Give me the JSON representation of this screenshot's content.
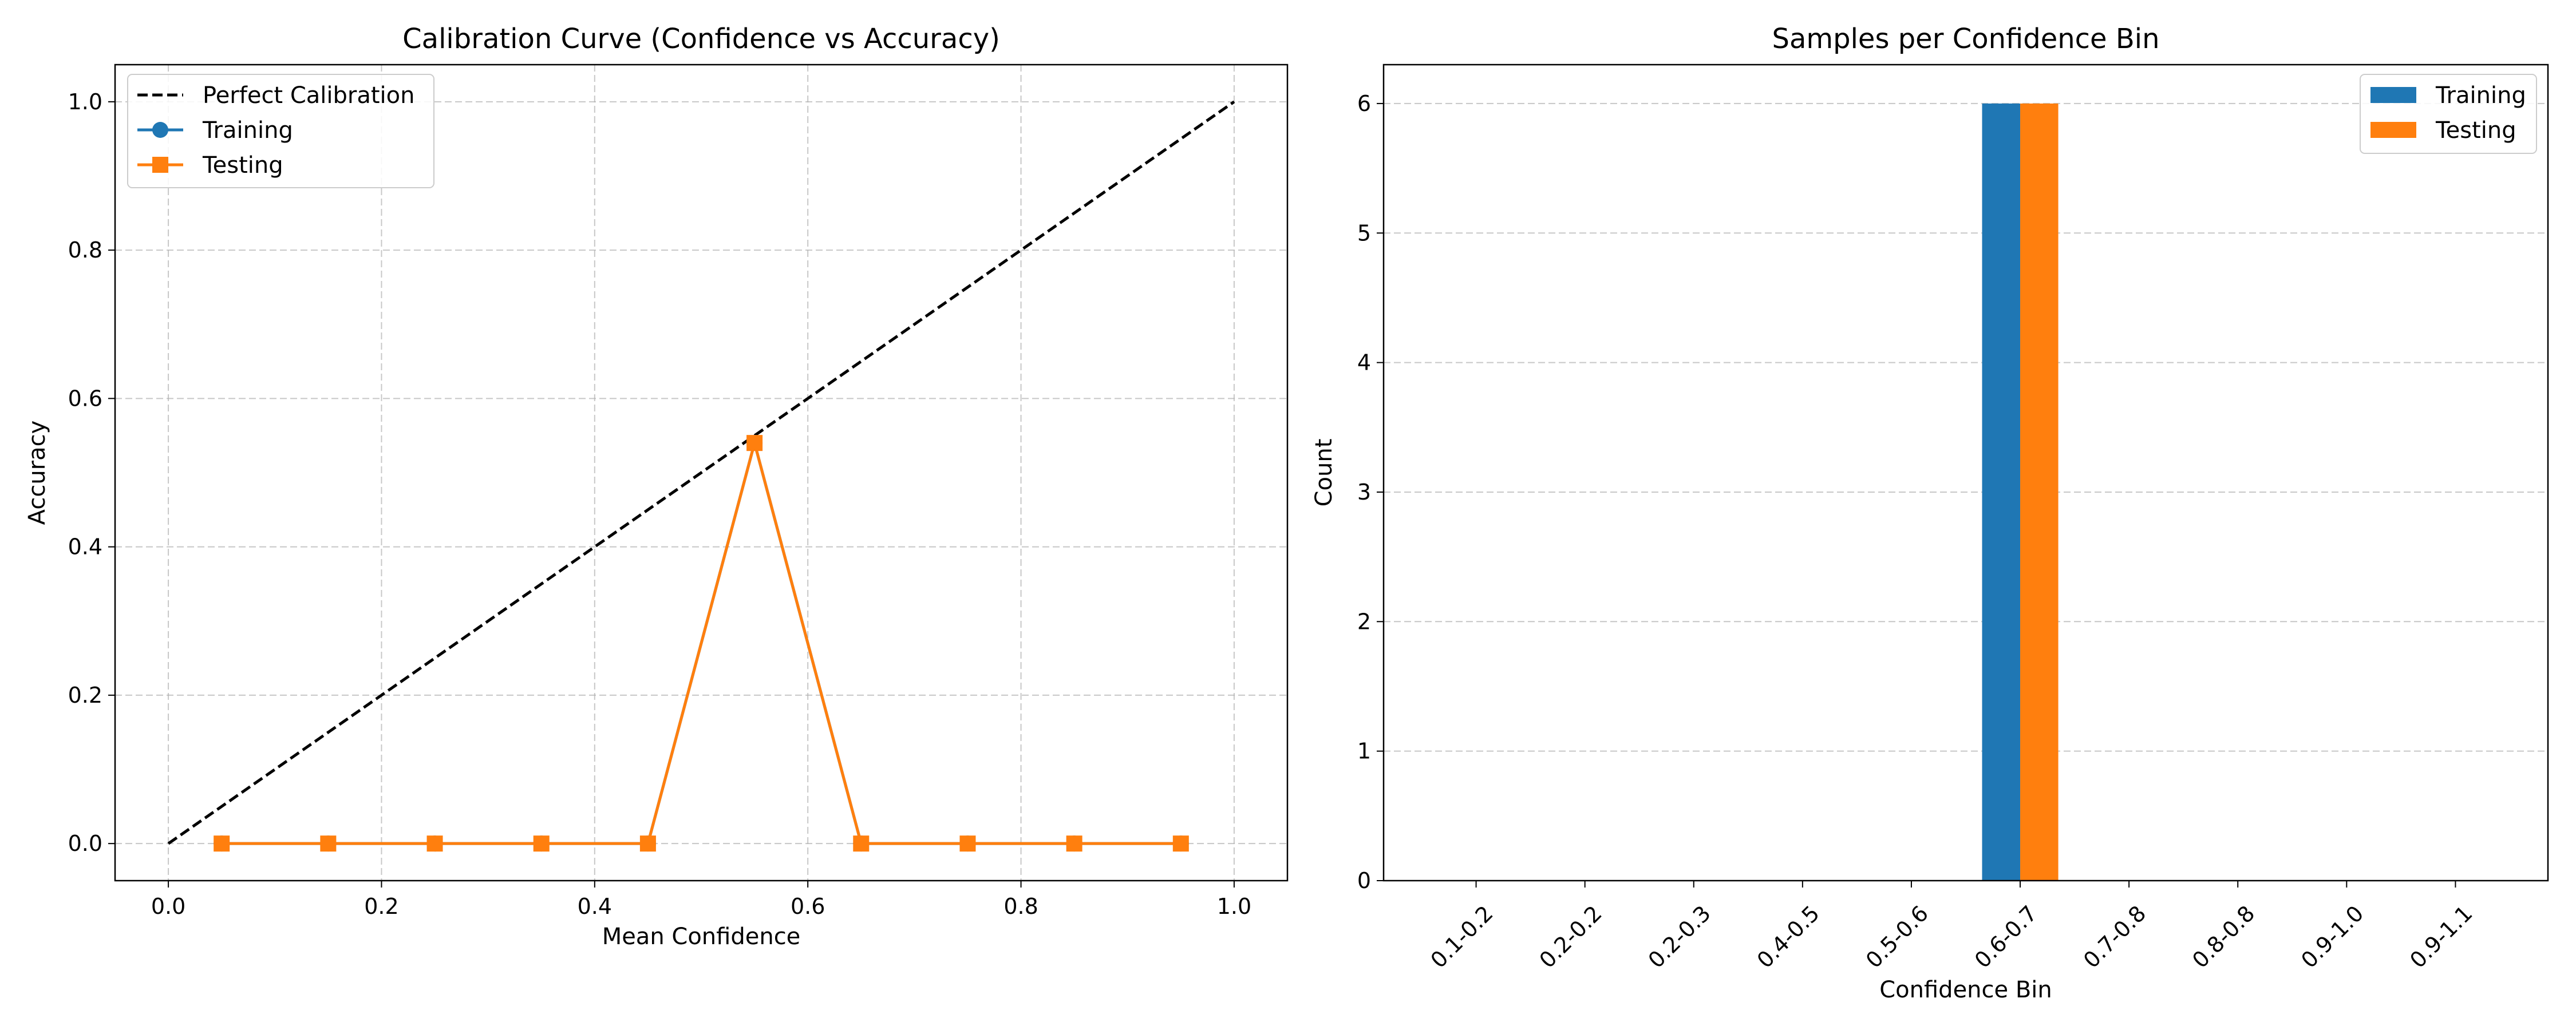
{
  "colors": {
    "training": "#1f77b4",
    "testing": "#ff7f0e",
    "perfect": "#000000",
    "grid": "#b0b0b0"
  },
  "chart_data": [
    {
      "type": "line",
      "title": "Calibration Curve (Confidence vs Accuracy)",
      "xlabel": "Mean Confidence",
      "ylabel": "Accuracy",
      "xlim": [
        -0.05,
        1.05
      ],
      "ylim": [
        -0.05,
        1.05
      ],
      "xticks": [
        "0.0",
        "0.2",
        "0.4",
        "0.6",
        "0.8",
        "1.0"
      ],
      "yticks": [
        "0.0",
        "0.2",
        "0.4",
        "0.6",
        "0.8",
        "1.0"
      ],
      "grid": true,
      "legend_position": "top-left",
      "series": [
        {
          "name": "Perfect Calibration",
          "style": "dashed",
          "color": "#000000",
          "x": [
            0.0,
            1.0
          ],
          "y": [
            0.0,
            1.0
          ]
        },
        {
          "name": "Training",
          "marker": "circle",
          "color": "#1f77b4",
          "x": [
            0.05,
            0.15,
            0.25,
            0.35,
            0.45,
            0.55,
            0.65,
            0.75,
            0.85,
            0.95
          ],
          "y": [
            0,
            0,
            0,
            0,
            0,
            0.54,
            0,
            0,
            0,
            0
          ]
        },
        {
          "name": "Testing",
          "marker": "square",
          "color": "#ff7f0e",
          "x": [
            0.05,
            0.15,
            0.25,
            0.35,
            0.45,
            0.55,
            0.65,
            0.75,
            0.85,
            0.95
          ],
          "y": [
            0,
            0,
            0,
            0,
            0,
            0.54,
            0,
            0,
            0,
            0
          ]
        }
      ]
    },
    {
      "type": "bar",
      "title": "Samples per Confidence Bin",
      "xlabel": "Confidence Bin",
      "ylabel": "Count",
      "categories": [
        "0.1-0.2",
        "0.2-0.2",
        "0.2-0.3",
        "0.4-0.5",
        "0.5-0.6",
        "0.6-0.7",
        "0.7-0.8",
        "0.8-0.8",
        "0.9-1.0",
        "0.9-1.1"
      ],
      "ylim": [
        0,
        6.3
      ],
      "yticks": [
        "0",
        "1",
        "2",
        "3",
        "4",
        "5",
        "6"
      ],
      "grid": true,
      "legend_position": "top-right",
      "series": [
        {
          "name": "Training",
          "color": "#1f77b4",
          "values": [
            0,
            0,
            0,
            0,
            0,
            6,
            0,
            0,
            0,
            0
          ]
        },
        {
          "name": "Testing",
          "color": "#ff7f0e",
          "values": [
            0,
            0,
            0,
            0,
            0,
            6,
            0,
            0,
            0,
            0
          ]
        }
      ]
    }
  ]
}
